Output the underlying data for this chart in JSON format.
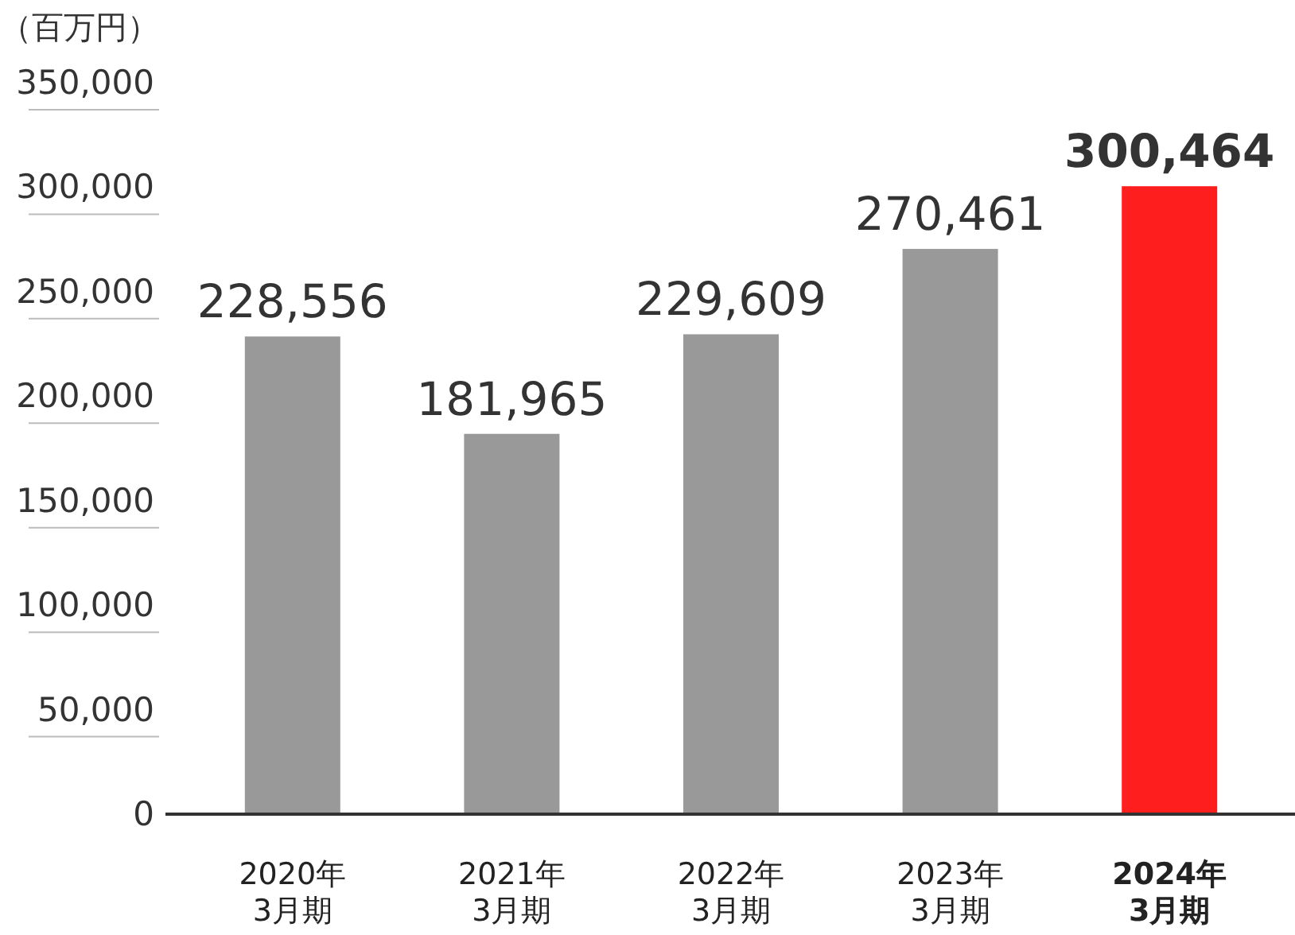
{
  "chart_data": {
    "type": "bar",
    "ylabel": "（百万円）",
    "categories": [
      "2020年\n3月期",
      "2021年\n3月期",
      "2022年\n3月期",
      "2023年\n3月期",
      "2024年\n3月期"
    ],
    "values": [
      228556,
      181965,
      229609,
      270461,
      300464
    ],
    "colors": [
      "#999999",
      "#999999",
      "#999999",
      "#999999",
      "#ff1e1e"
    ],
    "ylim": [
      0,
      350000
    ],
    "yticks": [
      0,
      {
        "value": 50000,
        "label": "50,000"
      },
      {
        "value": 100000,
        "label": "100,000"
      },
      {
        "value": 150000,
        "label": "150,000"
      },
      {
        "value": 200000,
        "label": "200,000"
      },
      {
        "value": 250000,
        "label": "250,000"
      },
      {
        "value": 300000,
        "label": "300,000"
      },
      {
        "value": 350000,
        "label": "350,000"
      }
    ],
    "value_labels": [
      "228,556",
      "181,965",
      "229,609",
      "270,461",
      "300,464"
    ]
  }
}
